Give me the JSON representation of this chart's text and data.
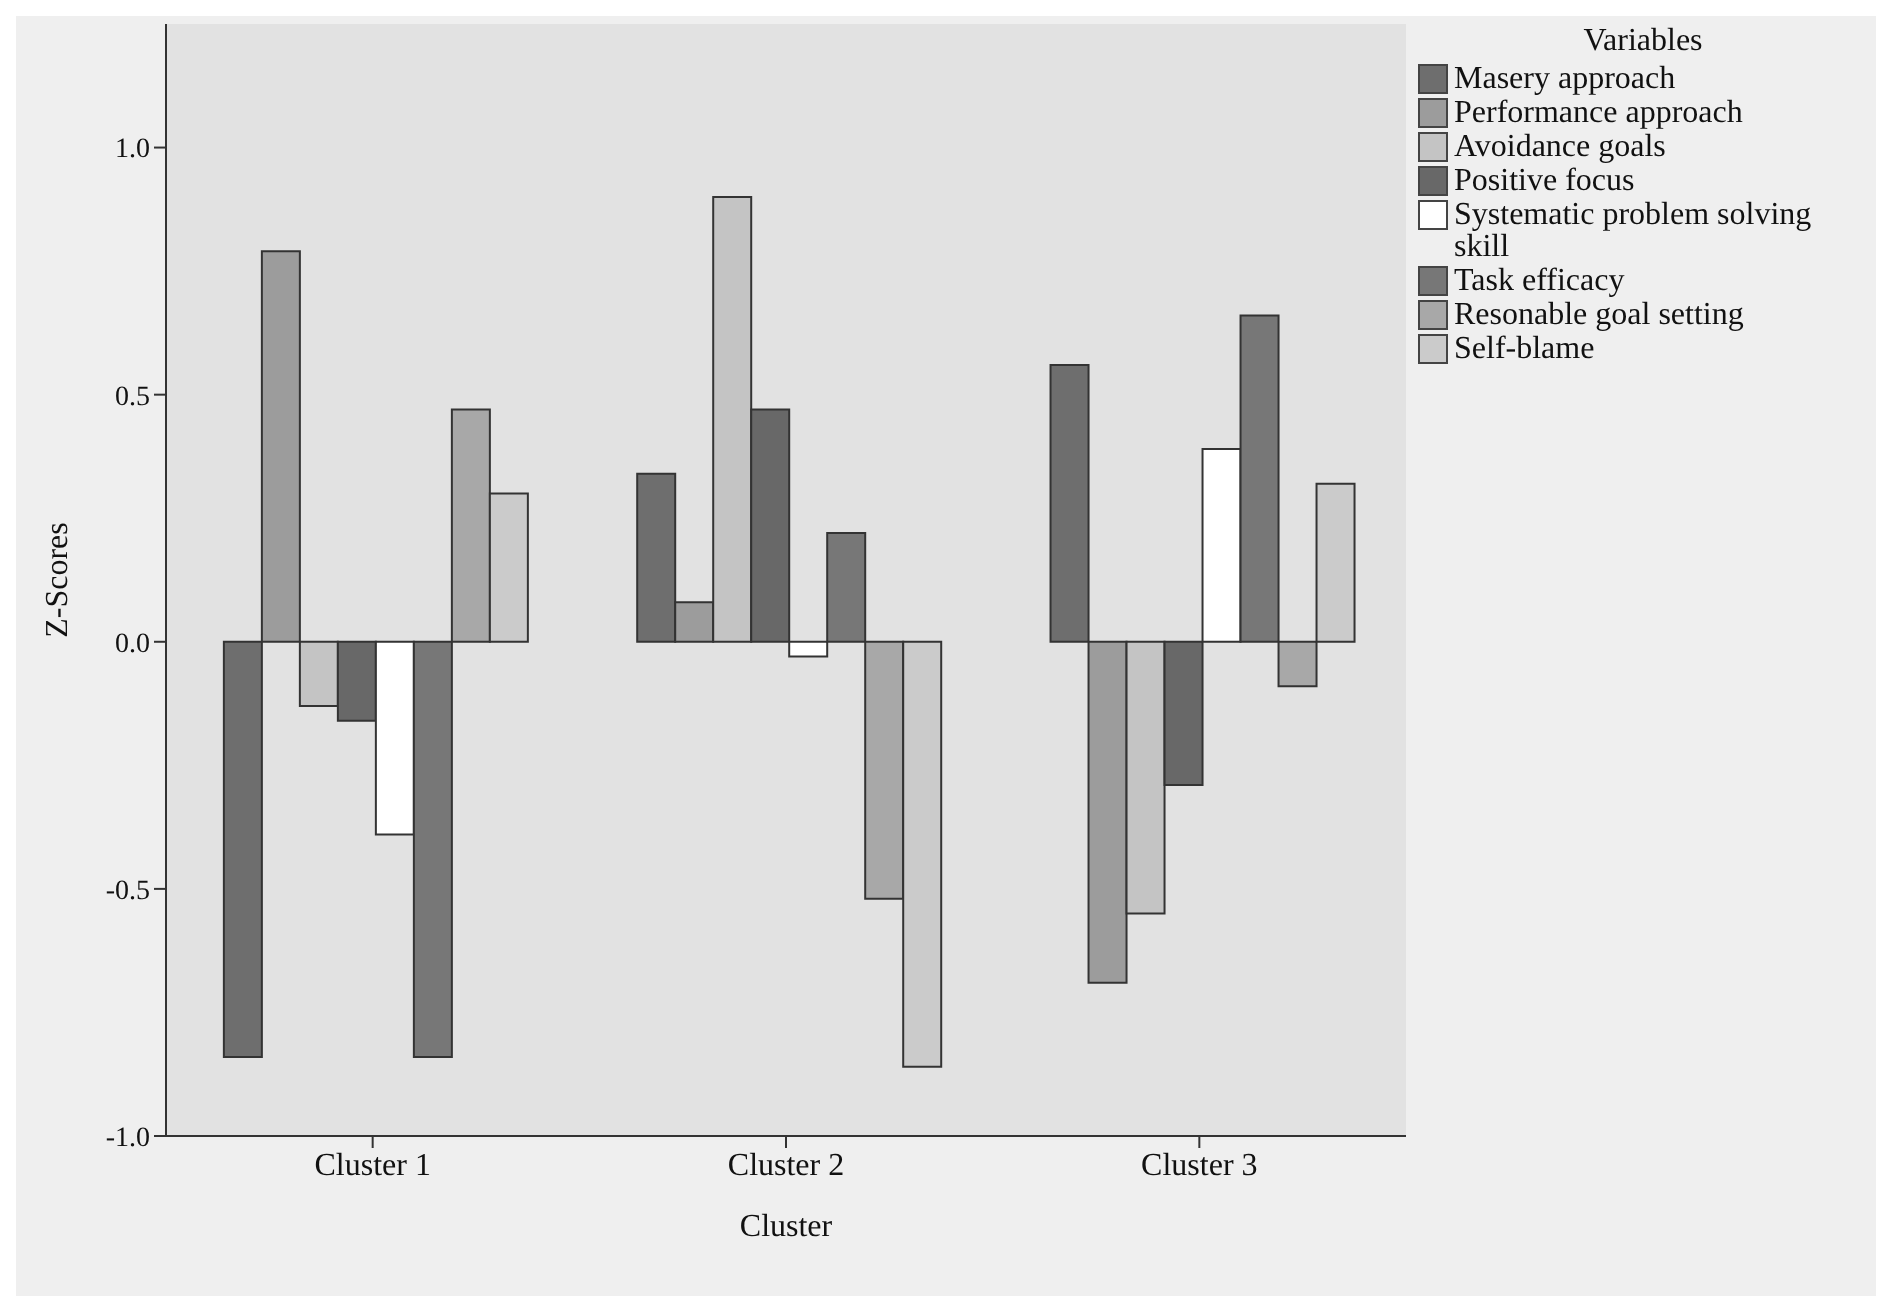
{
  "chart_data": {
    "type": "bar",
    "xlabel": "Cluster",
    "ylabel": "Z-Scores",
    "legend_title": "Variables",
    "categories": [
      "Cluster 1",
      "Cluster 2",
      "Cluster 3"
    ],
    "series": [
      {
        "name": "Masery approach",
        "color": "#6e6e6e",
        "values": [
          -0.84,
          0.34,
          0.56
        ]
      },
      {
        "name": "Performance approach",
        "color": "#9c9c9c",
        "values": [
          0.79,
          0.08,
          -0.69
        ]
      },
      {
        "name": "Avoidance goals",
        "color": "#c4c4c4",
        "values": [
          -0.13,
          0.9,
          -0.55
        ]
      },
      {
        "name": "Positive focus",
        "color": "#686868",
        "values": [
          -0.16,
          0.47,
          -0.29
        ]
      },
      {
        "name": "Systematic problem solving skill",
        "color": "#ffffff",
        "values": [
          -0.39,
          -0.03,
          0.39
        ]
      },
      {
        "name": "Task efficacy",
        "color": "#777777",
        "values": [
          -0.84,
          0.22,
          0.66
        ]
      },
      {
        "name": "Resonable goal setting",
        "color": "#a8a8a8",
        "values": [
          0.47,
          -0.52,
          -0.09
        ]
      },
      {
        "name": "Self-blame",
        "color": "#cbcbcb",
        "values": [
          0.3,
          -0.86,
          0.32
        ]
      }
    ],
    "ylim": [
      -1.0,
      1.25
    ],
    "yticks": [
      {
        "value": -1,
        "label": "-1.0"
      },
      {
        "value": -0.5,
        "label": "-0.5"
      },
      {
        "value": 0,
        "label": "0.0"
      },
      {
        "value": 0.5,
        "label": "0.5"
      },
      {
        "value": 1,
        "label": "1.0"
      }
    ],
    "grid": false,
    "legend": "right"
  }
}
